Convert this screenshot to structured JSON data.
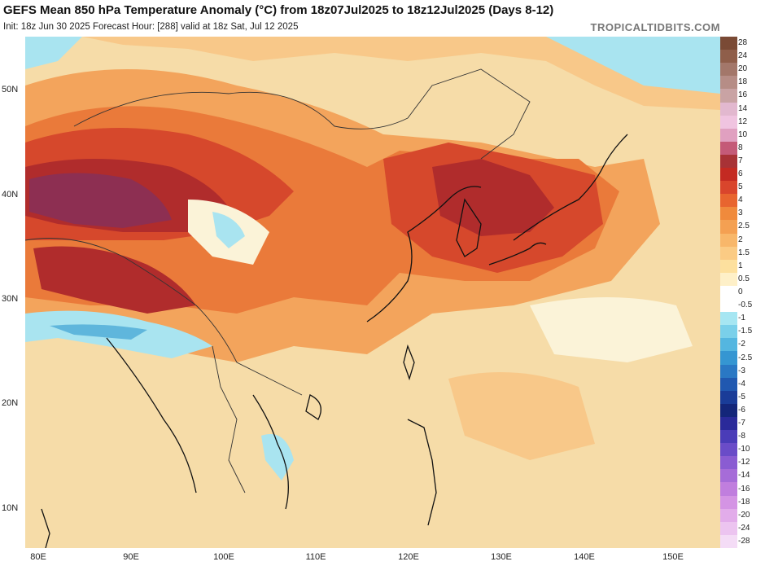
{
  "header": {
    "title": "GEFS Mean 850 hPa Temperature Anomaly (°C) from 18z07Jul2025 to 18z12Jul2025 (Days 8-12)",
    "subtitle": "Init: 18z Jun 30 2025   Forecast Hour: [288]   valid at 18z Sat, Jul 12 2025",
    "site": "TROPICALTIDBITS.COM"
  },
  "map": {
    "lat_labels": [
      "50N",
      "40N",
      "30N",
      "20N",
      "10N"
    ],
    "lon_labels": [
      "80E",
      "90E",
      "100E",
      "110E",
      "120E",
      "130E",
      "140E",
      "150E"
    ],
    "regions": {
      "strong_warm": "#8d2f52",
      "very_warm": "#b02c2c",
      "warm": "#d6482c",
      "mod_warm": "#ea7a3a",
      "mild_warm": "#f3a45c",
      "slight_warm": "#f8c889",
      "neutral": "#f6dca8",
      "near_zero": "#fbf3d8",
      "cool": "#a9e4f0",
      "cooler": "#5fb6dc"
    }
  },
  "colorbar": {
    "labels": [
      "28",
      "24",
      "20",
      "18",
      "16",
      "14",
      "12",
      "10",
      "8",
      "7",
      "6",
      "5",
      "4",
      "3",
      "2.5",
      "2",
      "1.5",
      "1",
      "0.5",
      "0",
      "-0.5",
      "-1",
      "-1.5",
      "-2",
      "-2.5",
      "-3",
      "-4",
      "-5",
      "-6",
      "-7",
      "-8",
      "-10",
      "-12",
      "-14",
      "-16",
      "-18",
      "-20",
      "-24",
      "-28"
    ],
    "colors": [
      "#7a4a35",
      "#8f5e4a",
      "#a3776a",
      "#b68d86",
      "#c9a3a4",
      "#e2b8cf",
      "#f0c4e0",
      "#e0a0c0",
      "#c45a78",
      "#a83236",
      "#c42a22",
      "#d9452c",
      "#e8652f",
      "#f08a3c",
      "#f4a052",
      "#f8b76a",
      "#fbcb84",
      "#fde09e",
      "#fef0c8",
      "#ffffff",
      "#ffffff",
      "#a6e6f2",
      "#7ad0ea",
      "#54b6e0",
      "#3596d2",
      "#2a78c4",
      "#2058b0",
      "#1a3c98",
      "#14267a",
      "#2a2a9a",
      "#4a3cb8",
      "#6a4cc8",
      "#8a5cd2",
      "#a66cd8",
      "#c07ede",
      "#d494e4",
      "#e2acea",
      "#ecc4f0",
      "#f4dcf6"
    ]
  }
}
